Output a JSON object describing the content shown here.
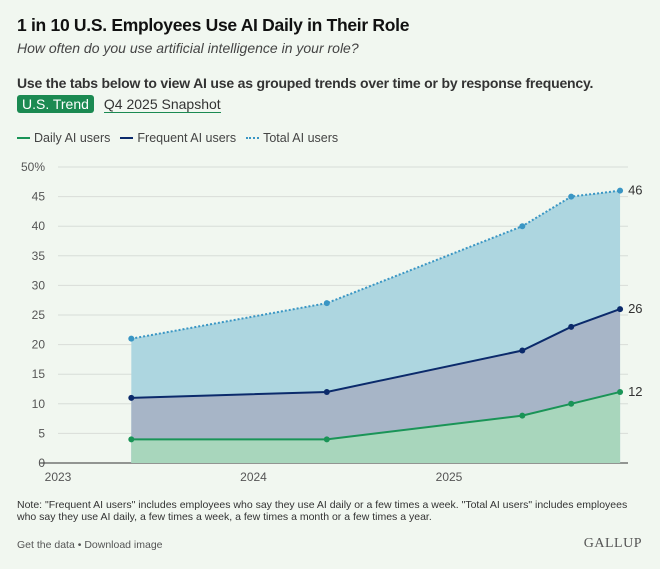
{
  "header": {
    "title": "1 in 10 U.S. Employees Use AI Daily in Their Role",
    "subtitle": "How often do you use artificial intelligence in your role?",
    "instructions": "Use the tabs below to view AI use as grouped trends over time or by response frequency."
  },
  "tabs": [
    {
      "label": "U.S. Trend",
      "active": true
    },
    {
      "label": "Q4 2025 Snapshot",
      "active": false
    }
  ],
  "chart_data": {
    "type": "area",
    "x": [
      "Q2 2023",
      "Q2 2024",
      "Q2 2025",
      "Q3 2025",
      "Q4 2025"
    ],
    "x_ticks": [
      "2023",
      "2024",
      "2025"
    ],
    "y_ticks": [
      "0",
      "5",
      "10",
      "15",
      "20",
      "25",
      "30",
      "35",
      "40",
      "45",
      "50%"
    ],
    "ylim": [
      0,
      50
    ],
    "grid": true,
    "legend_placement": "top-left",
    "series": [
      {
        "name": "Daily AI users",
        "values": [
          4,
          4,
          8,
          10,
          12
        ],
        "end_label": "12",
        "line_color": "#1a9457",
        "fill_color": "#a8d6bc",
        "style": "solid"
      },
      {
        "name": "Frequent AI users",
        "values": [
          11,
          12,
          19,
          23,
          26
        ],
        "end_label": "26",
        "line_color": "#0b2a6b",
        "fill_color": "#a7b5c7",
        "style": "solid"
      },
      {
        "name": "Total AI users",
        "values": [
          21,
          27,
          40,
          45,
          46
        ],
        "end_label": "46",
        "line_color": "#3a96c4",
        "fill_color": "#add6e0",
        "style": "dotted"
      }
    ]
  },
  "footer": {
    "note": "Note: \"Frequent AI users\" includes employees who say they use AI daily or a few times a week. \"Total AI users\" includes employees who say they use AI daily, a few times a week, a few times a month or a few times a year.",
    "get_data": "Get the data",
    "separator": " • ",
    "download": "Download image",
    "logo": "GALLUP"
  }
}
